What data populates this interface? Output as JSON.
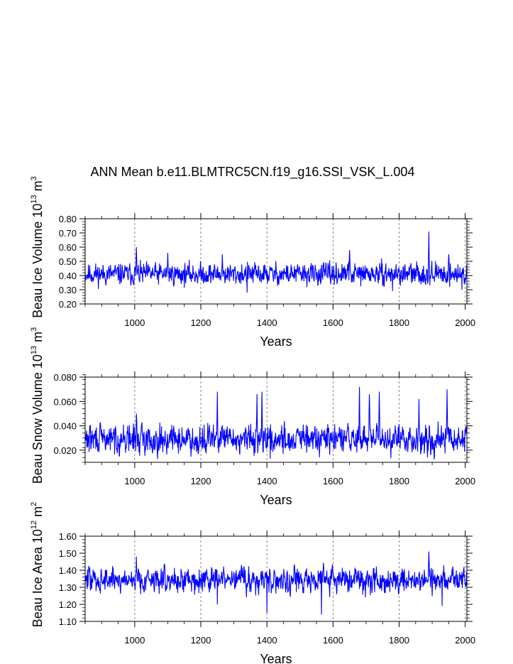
{
  "chart_data": {
    "type": "line",
    "title": "ANN Mean b.e11.BLMTRC5CN.f19_g16.SSI_VSK_L.004",
    "series_color": "#0000ff",
    "panels": [
      {
        "name": "ice-volume",
        "ylabel_parts": [
          "Beau Ice Volume 10",
          "13",
          " m",
          "3"
        ],
        "xlabel": "Years",
        "xlim": [
          850,
          2005
        ],
        "ylim": [
          0.2,
          0.8
        ],
        "xticks": [
          1000,
          1200,
          1400,
          1600,
          1800,
          2000
        ],
        "xtick_labels": [
          "1000",
          "1200",
          "1400",
          "1600",
          "1800",
          "2000"
        ],
        "yticks": [
          0.2,
          0.3,
          0.4,
          0.5,
          0.6,
          0.7,
          0.8
        ],
        "ytick_labels": [
          "0.20",
          "0.30",
          "0.40",
          "0.50",
          "0.60",
          "0.70",
          "0.80"
        ],
        "grid": "vertical dashed at major x ticks",
        "base": 0.41,
        "noise": 0.045,
        "spikes": [
          [
            1005,
            0.6
          ],
          [
            1100,
            0.56
          ],
          [
            1265,
            0.55
          ],
          [
            1650,
            0.58
          ],
          [
            1890,
            0.71
          ],
          [
            1950,
            0.55
          ]
        ],
        "dips": [
          [
            1340,
            0.28
          ],
          [
            1780,
            0.29
          ],
          [
            1990,
            0.3
          ]
        ],
        "seed": 11
      },
      {
        "name": "snow-volume",
        "ylabel_parts": [
          "Beau Snow Volume 10",
          "13",
          " m",
          "3"
        ],
        "xlabel": "Years",
        "xlim": [
          850,
          2005
        ],
        "ylim": [
          0.01,
          0.08
        ],
        "xticks": [
          1000,
          1200,
          1400,
          1600,
          1800,
          2000
        ],
        "xtick_labels": [
          "1000",
          "1200",
          "1400",
          "1600",
          "1800",
          "2000"
        ],
        "yticks": [
          0.02,
          0.04,
          0.06,
          0.08
        ],
        "ytick_labels": [
          "0.020",
          "0.040",
          "0.060",
          "0.080"
        ],
        "grid": "vertical dashed at major x ticks",
        "base": 0.029,
        "noise": 0.007,
        "spikes": [
          [
            1250,
            0.068
          ],
          [
            1370,
            0.066
          ],
          [
            1385,
            0.068
          ],
          [
            1680,
            0.072
          ],
          [
            1710,
            0.066
          ],
          [
            1740,
            0.068
          ],
          [
            1860,
            0.062
          ],
          [
            1945,
            0.07
          ],
          [
            1005,
            0.05
          ]
        ],
        "dips": [
          [
            1410,
            0.013
          ],
          [
            1520,
            0.018
          ]
        ],
        "seed": 29
      },
      {
        "name": "ice-area",
        "ylabel_parts": [
          "Beau Ice Area 10",
          "12",
          " m",
          "2"
        ],
        "xlabel": "Years",
        "xlim": [
          850,
          2005
        ],
        "ylim": [
          1.1,
          1.6
        ],
        "xticks": [
          1000,
          1200,
          1400,
          1600,
          1800,
          2000
        ],
        "xtick_labels": [
          "1000",
          "1200",
          "1400",
          "1600",
          "1800",
          "2000"
        ],
        "yticks": [
          1.1,
          1.2,
          1.3,
          1.4,
          1.5,
          1.6
        ],
        "ytick_labels": [
          "1.10",
          "1.20",
          "1.30",
          "1.40",
          "1.50",
          "1.60"
        ],
        "grid": "vertical dashed at major x ticks",
        "base": 1.345,
        "noise": 0.045,
        "spikes": [
          [
            1005,
            1.48
          ],
          [
            1890,
            1.51
          ]
        ],
        "dips": [
          [
            1400,
            1.15
          ],
          [
            1565,
            1.14
          ],
          [
            1250,
            1.2
          ],
          [
            1930,
            1.19
          ]
        ],
        "seed": 47
      }
    ]
  }
}
